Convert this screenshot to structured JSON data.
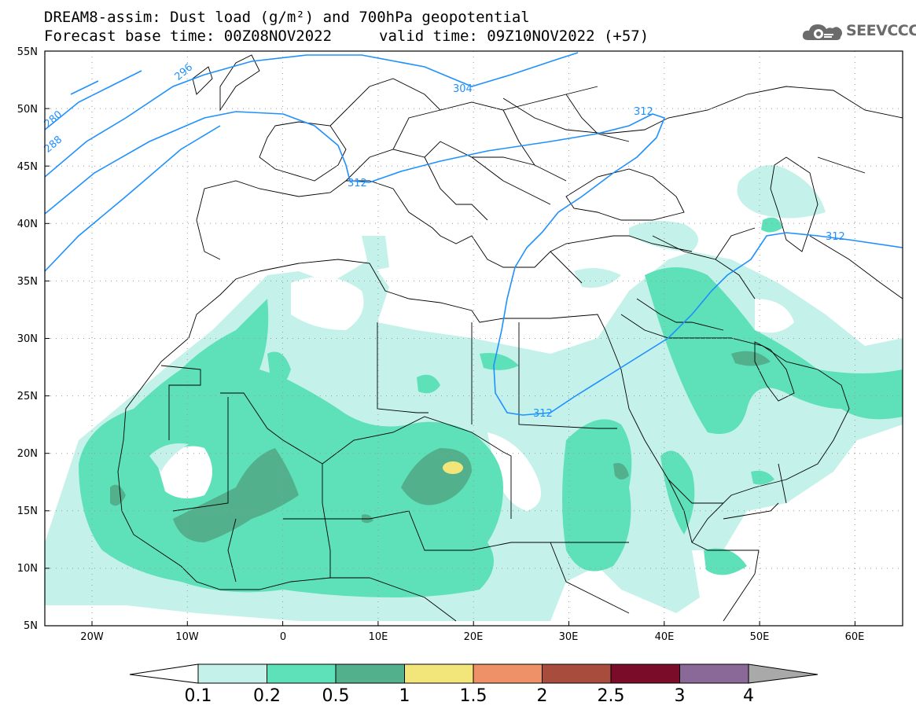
{
  "header": {
    "line1": "DREAM8-assim: Dust load (g/m²) and 700hPa geopotential",
    "line2a": "Forecast base time: 00Z08NOV2022",
    "line2b": "valid time: 09Z10NOV2022 (+57)"
  },
  "logo": {
    "text": "SEEVCCC",
    "icon": "cloud-gear-icon",
    "color": "#6b6b6b"
  },
  "map": {
    "lat_labels": [
      "55N",
      "50N",
      "45N",
      "40N",
      "35N",
      "30N",
      "25N",
      "20N",
      "15N",
      "10N",
      "5N"
    ],
    "lon_labels": [
      "20W",
      "10W",
      "0",
      "10E",
      "20E",
      "30E",
      "40E",
      "50E",
      "60E"
    ],
    "contour_labels": [
      "296",
      "280",
      "288",
      "304",
      "312",
      "312",
      "312",
      "312"
    ],
    "contour_color": "#1e90ff",
    "coast_color": "#000000"
  },
  "colorbar": {
    "labels": [
      "0.1",
      "0.2",
      "0.5",
      "1",
      "1.5",
      "2",
      "2.5",
      "3",
      "4"
    ],
    "colors": [
      "#ffffff",
      "#c4f2ea",
      "#5ee0b8",
      "#52b08c",
      "#f2e67a",
      "#ee9068",
      "#a84c3e",
      "#7a0c2a",
      "#8a6898",
      "#a9a9a9"
    ]
  }
}
